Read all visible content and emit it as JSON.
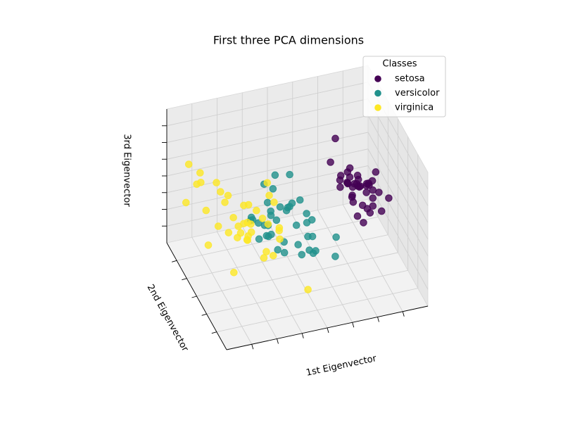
{
  "chart_data": {
    "type": "scatter3d",
    "title": "First three PCA dimensions",
    "xlabel": "1st Eigenvector",
    "ylabel": "2nd Eigenvector",
    "zlabel": "3rd Eigenvector",
    "legend_title": "Classes",
    "legend": "upper right",
    "grid": true,
    "xlim": [
      4,
      -4
    ],
    "ylim": [
      -1.5,
      1.5
    ],
    "zlim": [
      -1,
      1
    ],
    "xticks": [
      3,
      2,
      1,
      0,
      -1,
      -2,
      -3
    ],
    "yticks": [
      -1,
      -0.5,
      0,
      0.5,
      1
    ],
    "zticks": [
      -0.75,
      -0.5,
      -0.25,
      0,
      0.25,
      0.5,
      0.75
    ],
    "series": [
      {
        "name": "setosa",
        "color": "#440154",
        "x": [
          -2.68,
          -2.71,
          -2.89,
          -2.75,
          -2.73,
          -2.28,
          -2.82,
          -2.63,
          -2.89,
          -2.67,
          -2.51,
          -2.61,
          -2.79,
          -3.23,
          -2.64,
          -2.38,
          -2.62,
          -2.65,
          -2.2,
          -2.59,
          -2.31,
          -2.54,
          -3.22,
          -2.3,
          -2.36,
          -2.51,
          -2.47,
          -2.56,
          -2.64,
          -2.63,
          -2.59,
          -2.41,
          -2.65,
          -2.6,
          -2.89,
          -2.77,
          -2.45,
          -2.98,
          -2.84,
          -2.5
        ],
        "y": [
          0.32,
          -0.18,
          -0.14,
          -0.32,
          0.33,
          0.74,
          -0.09,
          0.16,
          -0.58,
          -0.11,
          0.65,
          0.02,
          -0.24,
          -0.51,
          1.18,
          1.34,
          0.81,
          0.31,
          0.87,
          0.51,
          0.39,
          0.43,
          0.13,
          0.1,
          -0.04,
          -0.15,
          0.14,
          0.37,
          0.31,
          -0.19,
          -0.2,
          0.41,
          0.81,
          1.1,
          -0.14,
          -0.08,
          0.35,
          -0.33,
          0.12,
          0.52
        ],
        "z": [
          0.03,
          0.21,
          -0.02,
          -0.03,
          -0.09,
          -0.17,
          -0.26,
          0.02,
          0.02,
          0.2,
          -0.02,
          -0.19,
          0.3,
          0.15,
          -0.54,
          -0.23,
          -0.27,
          -0.06,
          0.39,
          -0.3,
          -0.03,
          -0.13,
          0.2,
          -0.16,
          -0.3,
          -0.35,
          0.08,
          -0.05,
          0.1,
          -0.13,
          0.22,
          0.04,
          -0.29,
          -0.32,
          0.1,
          0.18,
          -0.23,
          0.16,
          -0.07,
          0.11
        ]
      },
      {
        "name": "versicolor",
        "color": "#21918c",
        "x": [
          1.28,
          0.93,
          1.46,
          0.18,
          1.09,
          0.64,
          1.1,
          -0.75,
          1.04,
          -0.01,
          -0.51,
          0.51,
          0.26,
          0.98,
          -0.17,
          0.93,
          0.66,
          0.23,
          0.94,
          0.04,
          1.12,
          0.36,
          1.3,
          0.92,
          0.71,
          0.9,
          1.33,
          1.56,
          0.81,
          -0.31,
          -0.07,
          -0.19,
          0.14,
          1.38,
          0.59,
          0.81,
          1.22,
          0.82,
          0.25,
          0.16
        ],
        "y": [
          0.69,
          0.32,
          0.5,
          -0.83,
          0.07,
          -0.42,
          0.28,
          -1.0,
          0.23,
          -0.72,
          -1.26,
          -0.1,
          -0.55,
          -0.12,
          -0.25,
          0.47,
          -0.35,
          -0.33,
          -0.54,
          -0.58,
          -0.08,
          -0.07,
          -0.33,
          -0.18,
          0.15,
          0.33,
          0.24,
          0.27,
          -0.16,
          -0.37,
          -0.71,
          -0.68,
          -0.31,
          -0.42,
          -0.48,
          0.2,
          0.41,
          -0.37,
          -0.27,
          -0.68
        ],
        "z": [
          -0.41,
          -0.02,
          -0.34,
          -0.18,
          -0.38,
          0.29,
          0.29,
          0.03,
          -0.46,
          0.2,
          -0.1,
          0.05,
          -0.39,
          0.63,
          0.03,
          -0.44,
          0.24,
          -0.36,
          -0.31,
          -0.12,
          0.08,
          0.56,
          -0.12,
          -0.46,
          -0.21,
          -0.37,
          -0.49,
          -0.2,
          0.16,
          -0.26,
          -0.31,
          -0.3,
          0.29,
          0.22,
          0.37,
          0.24,
          -0.35,
          -0.25,
          -0.1,
          0.15
        ]
      },
      {
        "name": "virginica",
        "color": "#fde725",
        "x": [
          2.53,
          1.41,
          2.61,
          1.97,
          2.35,
          3.4,
          0.52,
          2.93,
          2.32,
          2.92,
          1.66,
          1.8,
          2.17,
          1.34,
          1.59,
          1.9,
          1.95,
          3.49,
          3.79,
          1.3,
          2.43,
          1.2,
          3.5,
          1.39,
          2.28,
          2.61,
          1.26,
          1.29,
          2.12,
          2.39,
          2.84,
          3.23,
          2.16,
          1.44,
          1.78,
          3.08,
          2.14,
          1.9,
          1.17,
          2.1
        ],
        "y": [
          -0.01,
          -0.57,
          0.34,
          -0.18,
          0.04,
          0.55,
          -1.19,
          0.36,
          -0.24,
          0.78,
          0.24,
          -0.22,
          0.22,
          -0.78,
          -0.54,
          0.12,
          0.04,
          1.18,
          0.26,
          -0.76,
          0.38,
          -0.61,
          0.46,
          -0.2,
          0.33,
          0.56,
          -0.18,
          -0.12,
          -0.21,
          0.46,
          0.38,
          1.37,
          -0.22,
          -0.14,
          -0.5,
          0.69,
          0.14,
          0.05,
          -0.31,
          0.04
        ],
        "z": [
          -0.76,
          -0.3,
          0.11,
          -0.11,
          -0.28,
          0.36,
          -0.55,
          0.42,
          0.35,
          -0.74,
          -0.24,
          0.22,
          -0.22,
          0.18,
          0.17,
          -0.39,
          -0.35,
          -0.27,
          0.52,
          0.04,
          -0.38,
          0.12,
          0.56,
          -0.44,
          -0.14,
          0.15,
          0.38,
          0.54,
          -0.14,
          0.13,
          -0.25,
          0.18,
          0.07,
          -0.56,
          0.25,
          -0.16,
          -0.28,
          0.17,
          0.34,
          -0.09
        ]
      }
    ]
  }
}
